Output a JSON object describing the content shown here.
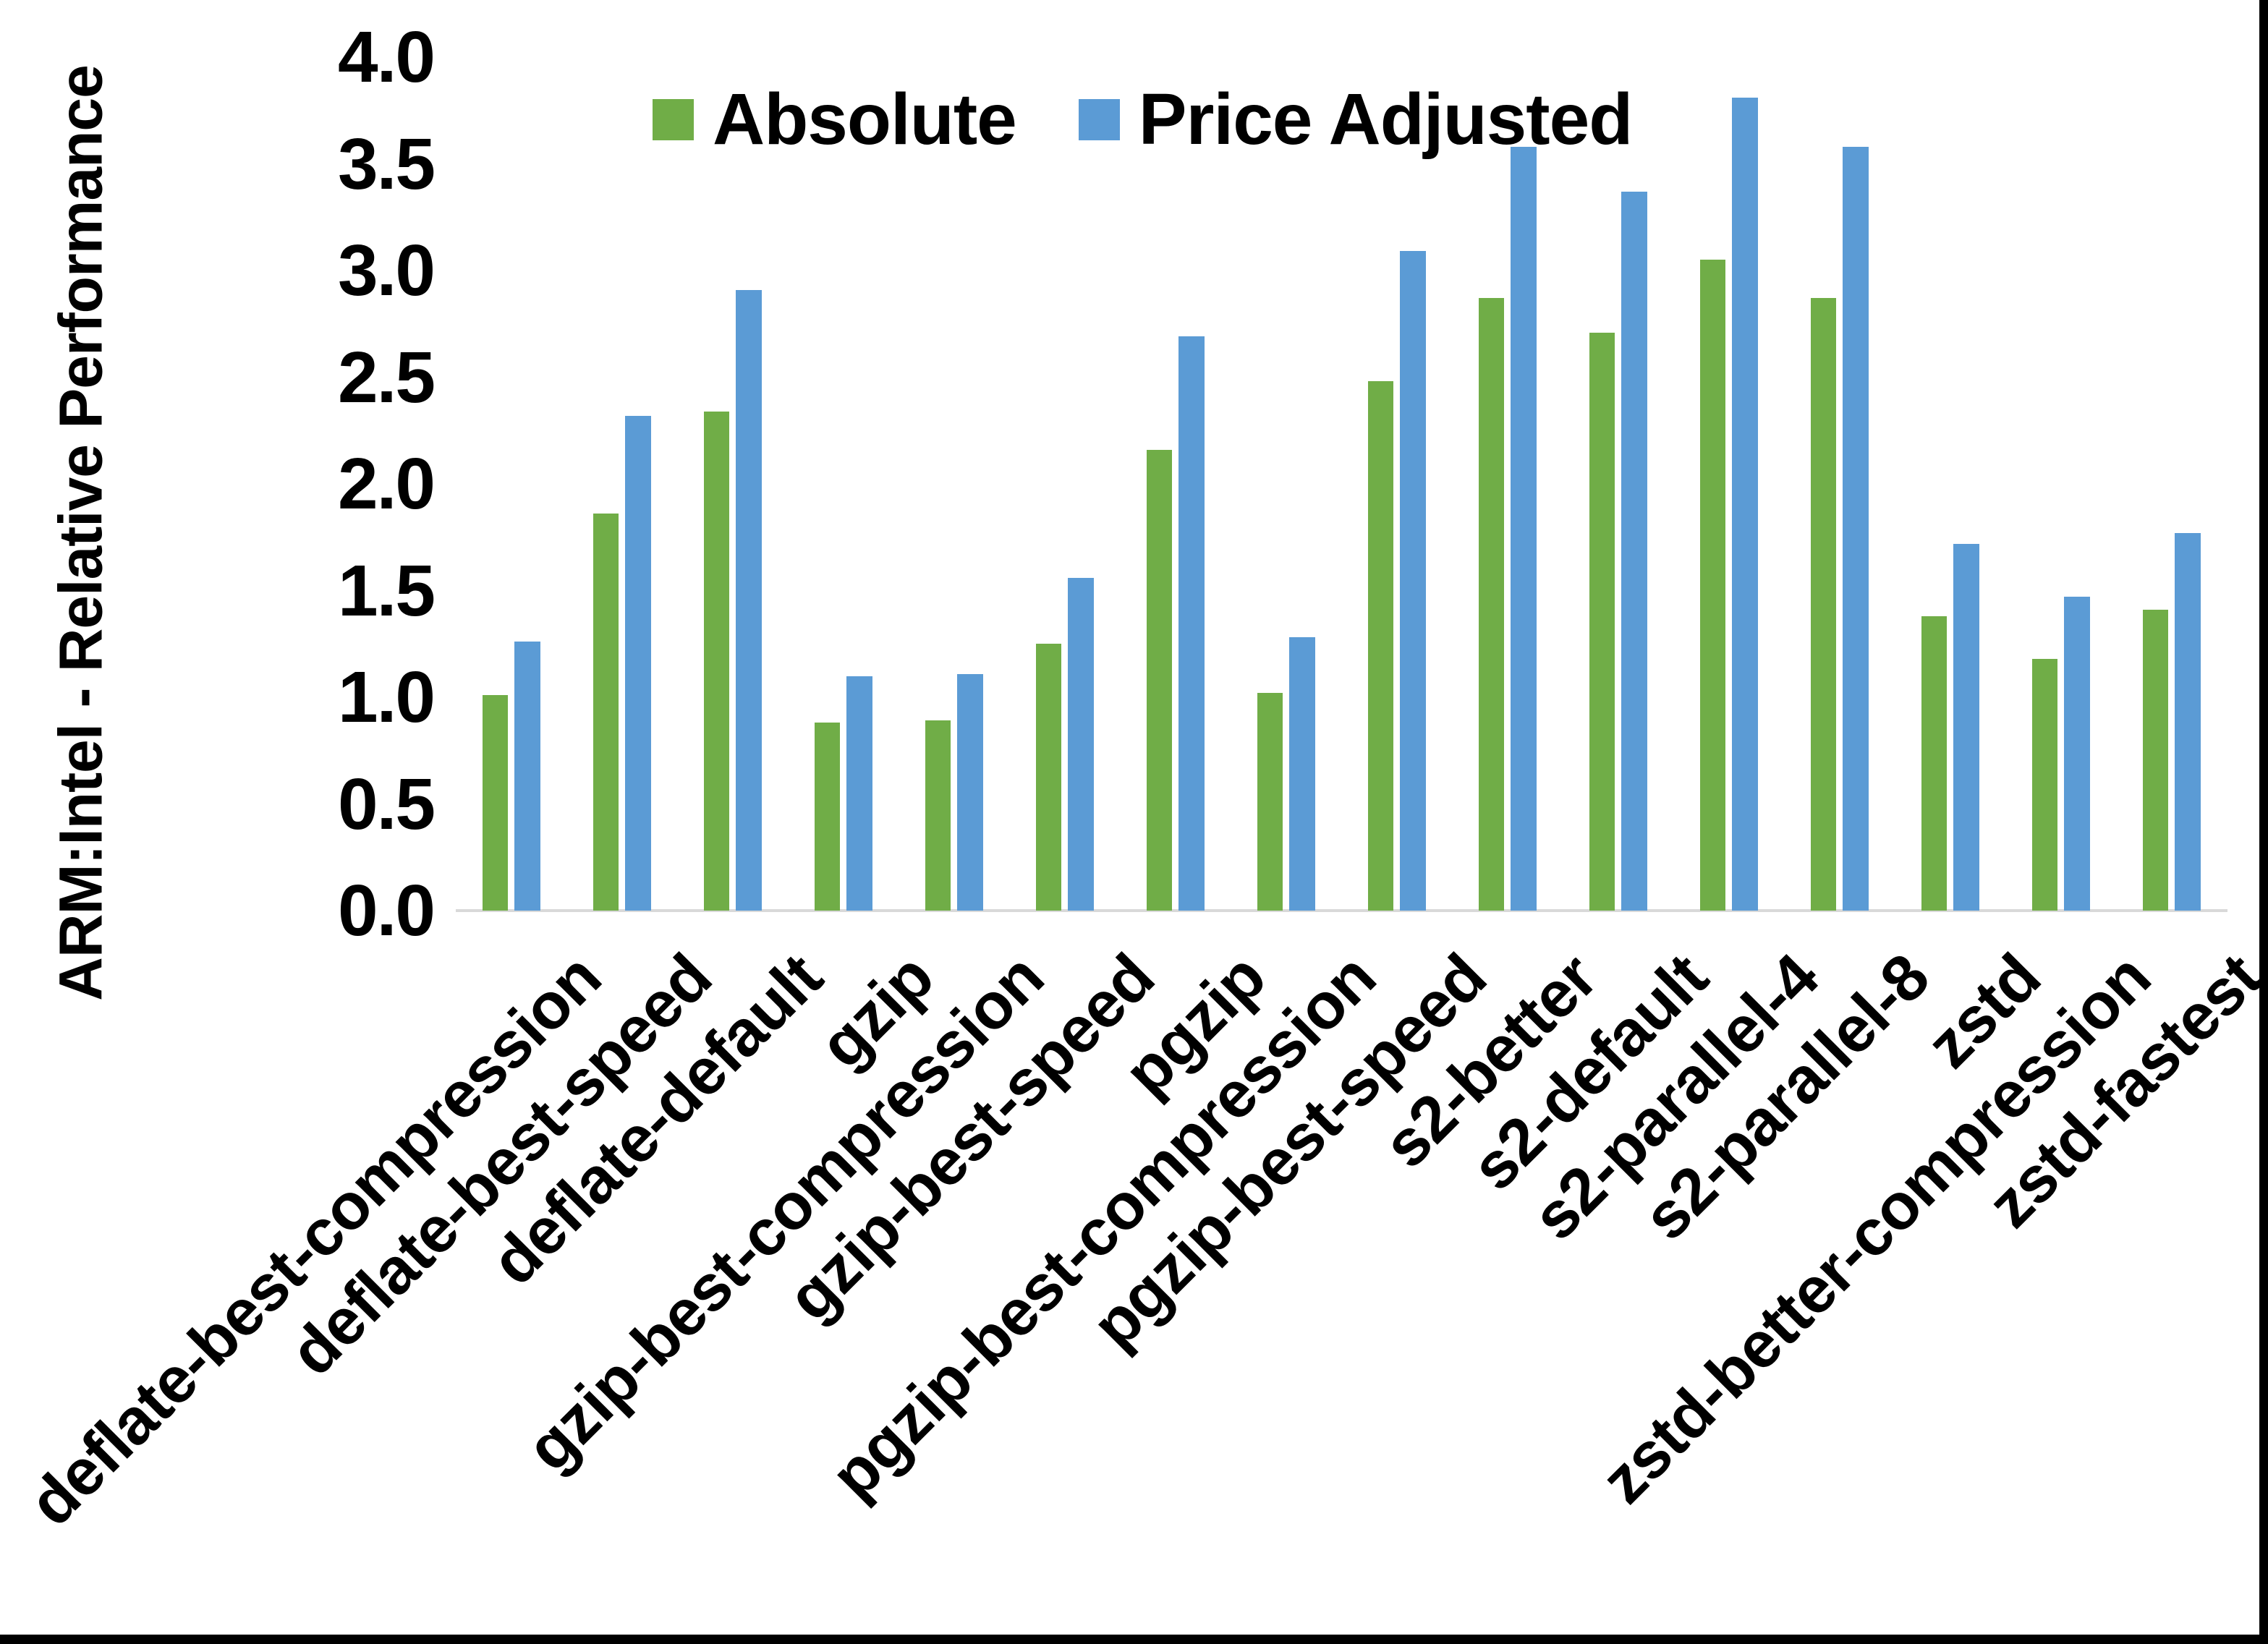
{
  "chart_data": {
    "type": "bar",
    "title": "",
    "xlabel": "",
    "ylabel": "ARM:Intel - Relative Performance",
    "ylim": [
      0,
      4
    ],
    "ytick_step": 0.5,
    "ytick_labels": [
      "0.0",
      "0.5",
      "1.0",
      "1.5",
      "2.0",
      "2.5",
      "3.0",
      "3.5",
      "4.0"
    ],
    "grid": false,
    "legend_position": "top",
    "categories": [
      "deflate-best-compression",
      "deflate-best-speed",
      "deflate-default",
      "gzip",
      "gzip-best-compression",
      "gzip-best-speed",
      "pgzip",
      "pgzip-best-compression",
      "pgzip-best-speed",
      "s2-better",
      "s2-default",
      "s2-parallel-4",
      "s2-parallel-8",
      "zstd",
      "zstd-better-compression",
      "zstd-fastest"
    ],
    "series": [
      {
        "name": "Absolute",
        "color": "#70AD47",
        "values": [
          1.01,
          1.86,
          2.34,
          0.88,
          0.89,
          1.25,
          2.16,
          1.02,
          2.48,
          2.87,
          2.71,
          3.05,
          2.87,
          1.38,
          1.18,
          1.41
        ]
      },
      {
        "name": "Price Adjusted",
        "color": "#5B9BD5",
        "values": [
          1.26,
          2.32,
          2.91,
          1.1,
          1.11,
          1.56,
          2.69,
          1.28,
          3.09,
          3.58,
          3.37,
          3.81,
          3.58,
          1.72,
          1.47,
          1.77
        ]
      }
    ]
  },
  "colors": {
    "background": "#FFFFFF",
    "axis_line": "#D9D9D9",
    "text": "#000000",
    "frame": "#000000"
  }
}
